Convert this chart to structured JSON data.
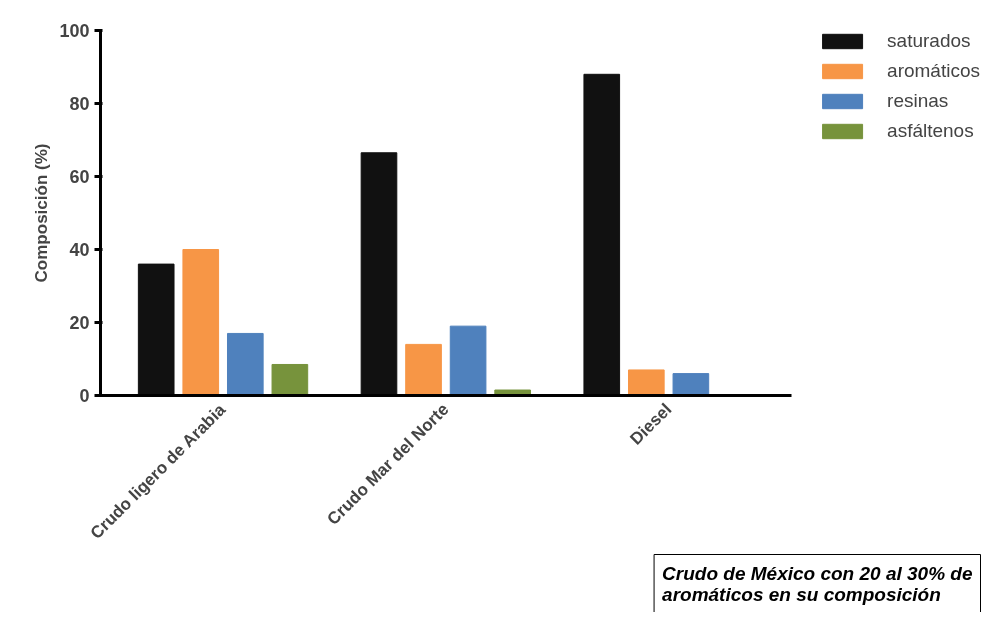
{
  "chart_data": {
    "type": "bar",
    "ylabel": "Composición (%)",
    "categories": [
      "Crudo ligero de Arabia",
      "Crudo Mar del Norte",
      "Diesel"
    ],
    "series": [
      {
        "name": "saturados",
        "color": "#111111",
        "values": [
          36,
          66.5,
          88
        ]
      },
      {
        "name": "aromáticos",
        "color": "#f79646",
        "values": [
          40,
          14,
          7
        ]
      },
      {
        "name": "resinas",
        "color": "#4f81bd",
        "values": [
          17,
          19,
          6
        ]
      },
      {
        "name": "asfáltenos",
        "color": "#77933c",
        "values": [
          8.5,
          1.5,
          0
        ]
      }
    ],
    "ylim": [
      0,
      100
    ],
    "yticks": [
      0,
      20,
      40,
      60,
      80,
      100
    ],
    "grid": false,
    "legend": "top right",
    "annotations": [
      "Crudo de México con 20 al 30% de aromáticos en su composición"
    ]
  }
}
